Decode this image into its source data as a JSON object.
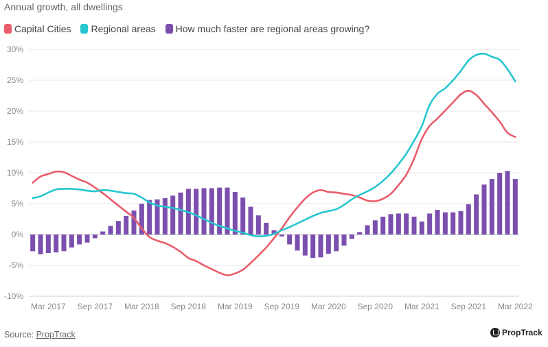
{
  "subtitle": "Annual growth, all dwellings",
  "legend": [
    {
      "label": "Capital Cities",
      "color": "#e85d6a"
    },
    {
      "label": "Regional areas",
      "color": "#26c6d0"
    },
    {
      "label": "How much faster are regional areas growing?",
      "color": "#7b4fae"
    }
  ],
  "footer": {
    "source_prefix": "Source: ",
    "source_link": "PropTrack"
  },
  "logo": {
    "text": "PropTrack"
  },
  "chart_data": {
    "type": "bar+line",
    "title": "",
    "subtitle": "Annual growth, all dwellings",
    "xlabel": "",
    "ylabel": "",
    "ylim": [
      -0.1,
      0.3
    ],
    "yticks": [
      -0.1,
      -0.05,
      0.0,
      0.05,
      0.1,
      0.15,
      0.2,
      0.25,
      0.3
    ],
    "ytick_labels": [
      "-10%",
      "-5%",
      "0%",
      "5%",
      "10%",
      "15%",
      "20%",
      "25%",
      "30%"
    ],
    "x": [
      "Jan 2017",
      "Feb 2017",
      "Mar 2017",
      "Apr 2017",
      "May 2017",
      "Jun 2017",
      "Jul 2017",
      "Aug 2017",
      "Sep 2017",
      "Oct 2017",
      "Nov 2017",
      "Dec 2017",
      "Jan 2018",
      "Feb 2018",
      "Mar 2018",
      "Apr 2018",
      "May 2018",
      "Jun 2018",
      "Jul 2018",
      "Aug 2018",
      "Sep 2018",
      "Oct 2018",
      "Nov 2018",
      "Dec 2018",
      "Jan 2019",
      "Feb 2019",
      "Mar 2019",
      "Apr 2019",
      "May 2019",
      "Jun 2019",
      "Jul 2019",
      "Aug 2019",
      "Sep 2019",
      "Oct 2019",
      "Nov 2019",
      "Dec 2019",
      "Jan 2020",
      "Feb 2020",
      "Mar 2020",
      "Apr 2020",
      "May 2020",
      "Jun 2020",
      "Jul 2020",
      "Aug 2020",
      "Sep 2020",
      "Oct 2020",
      "Nov 2020",
      "Dec 2020",
      "Jan 2021",
      "Feb 2021",
      "Mar 2021",
      "Apr 2021",
      "May 2021",
      "Jun 2021",
      "Jul 2021",
      "Aug 2021",
      "Sep 2021",
      "Oct 2021",
      "Nov 2021",
      "Dec 2021",
      "Jan 2022",
      "Feb 2022",
      "Mar 2022"
    ],
    "xtick_labels": [
      "Mar 2017",
      "Sep 2017",
      "Mar 2018",
      "Sep 2018",
      "Mar 2019",
      "Sep 2019",
      "Mar 2020",
      "Sep 2020",
      "Mar 2021",
      "Sep 2021",
      "Mar 2022"
    ],
    "grid": true,
    "legend_position": "top-left",
    "series": [
      {
        "name": "Capital Cities",
        "type": "line",
        "color": "#e85d6a",
        "values": [
          0.084,
          0.094,
          0.098,
          0.102,
          0.101,
          0.095,
          0.089,
          0.084,
          0.076,
          0.067,
          0.057,
          0.047,
          0.037,
          0.027,
          0.01,
          -0.004,
          -0.01,
          -0.014,
          -0.02,
          -0.028,
          -0.038,
          -0.043,
          -0.05,
          -0.056,
          -0.062,
          -0.066,
          -0.063,
          -0.057,
          -0.046,
          -0.034,
          -0.021,
          -0.006,
          0.01,
          0.028,
          0.044,
          0.058,
          0.068,
          0.072,
          0.069,
          0.068,
          0.066,
          0.064,
          0.06,
          0.055,
          0.054,
          0.058,
          0.066,
          0.08,
          0.097,
          0.123,
          0.155,
          0.176,
          0.188,
          0.201,
          0.214,
          0.227,
          0.233,
          0.226,
          0.212,
          0.198,
          0.183,
          0.165,
          0.158
        ]
      },
      {
        "name": "Regional areas",
        "type": "line",
        "color": "#26c6d0",
        "values": [
          0.059,
          0.062,
          0.068,
          0.073,
          0.074,
          0.074,
          0.073,
          0.071,
          0.07,
          0.072,
          0.071,
          0.069,
          0.067,
          0.066,
          0.06,
          0.052,
          0.047,
          0.045,
          0.043,
          0.04,
          0.036,
          0.031,
          0.025,
          0.019,
          0.014,
          0.01,
          0.006,
          0.003,
          -0.001,
          -0.003,
          -0.002,
          0.001,
          0.007,
          0.012,
          0.018,
          0.024,
          0.03,
          0.035,
          0.038,
          0.041,
          0.048,
          0.057,
          0.064,
          0.07,
          0.077,
          0.087,
          0.099,
          0.114,
          0.131,
          0.152,
          0.176,
          0.21,
          0.228,
          0.237,
          0.25,
          0.265,
          0.282,
          0.291,
          0.293,
          0.288,
          0.283,
          0.268,
          0.248
        ]
      },
      {
        "name": "How much faster are regional areas growing?",
        "type": "bar",
        "color": "#7b4fae",
        "values": [
          -0.027,
          -0.032,
          -0.03,
          -0.029,
          -0.027,
          -0.021,
          -0.016,
          -0.013,
          -0.006,
          0.005,
          0.014,
          0.022,
          0.03,
          0.039,
          0.05,
          0.056,
          0.057,
          0.059,
          0.063,
          0.068,
          0.074,
          0.074,
          0.075,
          0.075,
          0.076,
          0.076,
          0.069,
          0.06,
          0.045,
          0.031,
          0.019,
          0.007,
          -0.003,
          -0.016,
          -0.026,
          -0.034,
          -0.038,
          -0.037,
          -0.031,
          -0.027,
          -0.018,
          -0.007,
          0.004,
          0.015,
          0.023,
          0.029,
          0.033,
          0.034,
          0.034,
          0.029,
          0.021,
          0.034,
          0.04,
          0.036,
          0.036,
          0.038,
          0.049,
          0.065,
          0.081,
          0.09,
          0.1,
          0.103,
          0.09
        ]
      }
    ]
  }
}
